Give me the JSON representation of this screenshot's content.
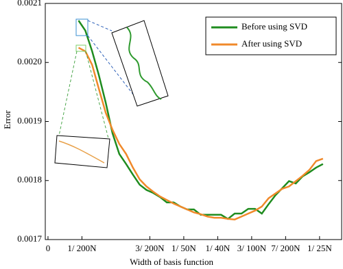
{
  "chart_data": {
    "type": "line",
    "xlabel": "Width of basis function",
    "ylabel": "Error",
    "x": [
      0.9,
      1.1,
      1.3,
      1.5,
      1.7,
      1.9,
      2.1,
      2.3,
      2.5,
      2.7,
      2.9,
      3.1,
      3.3,
      3.5,
      3.7,
      3.9,
      4.1,
      4.3,
      4.5,
      4.7,
      4.9,
      5.1,
      5.3,
      5.5,
      5.7,
      5.9,
      6.1,
      6.3,
      6.5,
      6.7,
      6.9,
      7.1,
      7.3,
      7.5,
      7.7,
      7.9,
      8.1
    ],
    "series": [
      {
        "name": "Before using SVD",
        "color": "#1f8c1f",
        "values": [
          0.002071,
          0.002054,
          0.002019,
          0.001978,
          0.001932,
          0.00188,
          0.001845,
          0.001828,
          0.00181,
          0.001793,
          0.001784,
          0.001779,
          0.001772,
          0.001763,
          0.001763,
          0.001756,
          0.001751,
          0.001751,
          0.001742,
          0.001742,
          0.001742,
          0.001742,
          0.001735,
          0.001744,
          0.001744,
          0.001752,
          0.001752,
          0.001744,
          0.00176,
          0.001775,
          0.001787,
          0.001799,
          0.001795,
          0.001807,
          0.001814,
          0.001822,
          0.001828
        ]
      },
      {
        "name": "After using SVD",
        "color": "#f0892a",
        "values": [
          0.002025,
          0.002019,
          0.001996,
          0.001955,
          0.001915,
          0.001886,
          0.001862,
          0.001845,
          0.001822,
          0.001802,
          0.00179,
          0.001781,
          0.001773,
          0.001767,
          0.001761,
          0.001756,
          0.001751,
          0.001746,
          0.001743,
          0.001739,
          0.001737,
          0.001737,
          0.001735,
          0.001734,
          0.001739,
          0.001744,
          0.001749,
          0.001756,
          0.00177,
          0.001778,
          0.001786,
          0.00179,
          0.001799,
          0.001808,
          0.001818,
          0.001833,
          0.001837
        ]
      }
    ],
    "xlim": [
      -0.08,
      8.65
    ],
    "xticks": [
      0,
      {
        "value": 1,
        "label": "1/ 200N"
      },
      {
        "value": 3,
        "label": "3/ 200N"
      },
      {
        "value": 4,
        "label": "1/ 50N"
      },
      {
        "value": 5,
        "label": "1/ 40N"
      },
      {
        "value": 6,
        "label": "3/ 100N"
      },
      {
        "value": 7,
        "label": "7/ 200N"
      },
      {
        "value": 8,
        "label": "1/ 25N"
      }
    ],
    "ylim": [
      0.0017,
      0.0021
    ],
    "yticks": [
      0.0017,
      0.0018,
      0.0019,
      {
        "value": 0.002,
        "label": "0.0020"
      },
      0.0021
    ],
    "legend": "upper right"
  }
}
